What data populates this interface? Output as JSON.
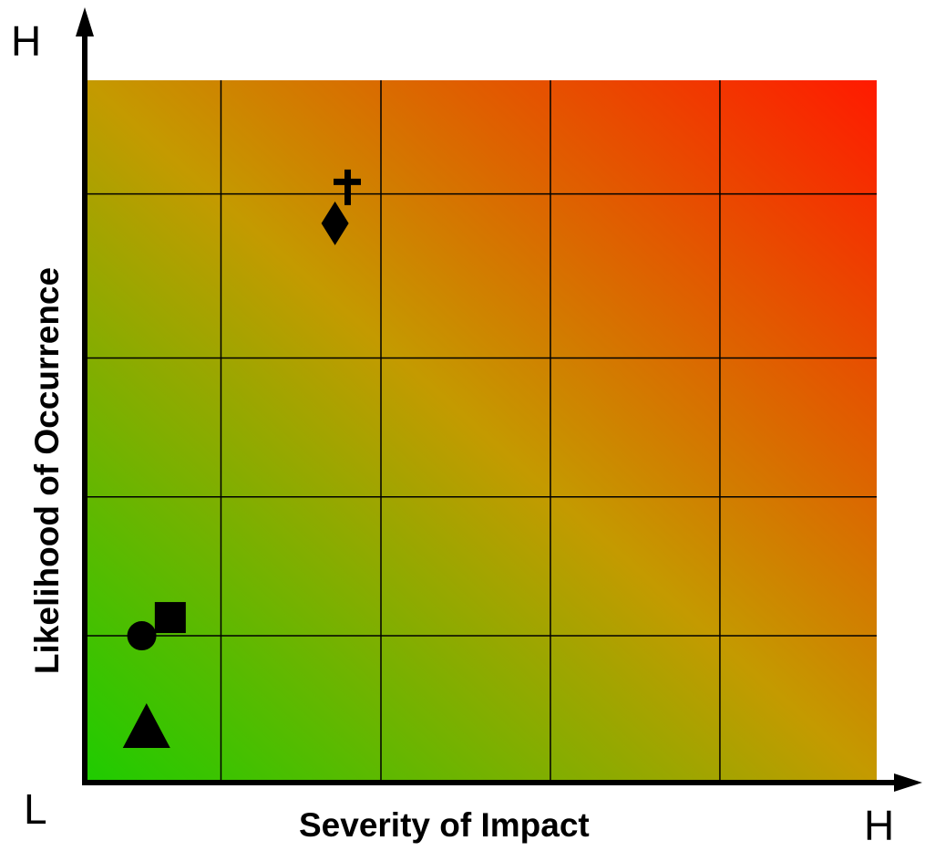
{
  "chart_data": {
    "type": "scatter",
    "title": "",
    "xlabel": "Severity of Impact",
    "ylabel": "Likelihood of Occurrence",
    "x_ticks": {
      "low": "L",
      "high": "H"
    },
    "y_ticks": {
      "high": "H"
    },
    "xlim": [
      0,
      5
    ],
    "ylim": [
      0,
      5
    ],
    "grid": true,
    "x_boundaries": [
      0,
      0.86,
      1.87,
      2.94,
      4.01,
      5
    ],
    "y_boundaries": [
      0,
      1.04,
      2.03,
      3.02,
      4.19,
      5
    ],
    "background": {
      "low_color": "#1ecc00",
      "high_color": "#ff1a00",
      "mid_color": "#c49a00"
    },
    "points": [
      {
        "marker": "cross",
        "x": 1.66,
        "y": 4.24
      },
      {
        "marker": "diamond",
        "x": 1.58,
        "y": 3.98
      },
      {
        "marker": "square",
        "x": 0.54,
        "y": 1.17
      },
      {
        "marker": "circle",
        "x": 0.36,
        "y": 1.04
      },
      {
        "marker": "triangle",
        "x": 0.39,
        "y": 0.39
      }
    ]
  },
  "colors": {
    "axis": "#000000",
    "grid": "#000000",
    "marker": "#000000"
  }
}
